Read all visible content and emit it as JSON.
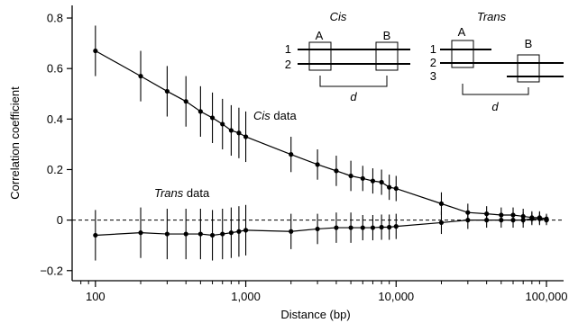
{
  "chart_data": {
    "type": "line",
    "xlabel": "Distance (bp)",
    "ylabel": "Correlation coefficient",
    "x_scale": "log",
    "xlim": [
      70,
      130000
    ],
    "ylim": [
      -0.24,
      0.85
    ],
    "x_ticks": [
      {
        "value": 100,
        "label": "100"
      },
      {
        "value": 1000,
        "label": "1,000"
      },
      {
        "value": 10000,
        "label": "10,000"
      },
      {
        "value": 100000,
        "label": "100,000"
      }
    ],
    "y_ticks": [
      {
        "value": 0.8,
        "label": "0.8"
      },
      {
        "value": 0.6,
        "label": "0.6"
      },
      {
        "value": 0.4,
        "label": "0.4"
      },
      {
        "value": 0.2,
        "label": "0.2"
      },
      {
        "value": 0,
        "label": "0"
      },
      {
        "value": -0.2,
        "label": "−0.2"
      }
    ],
    "reference_line": {
      "y": 0,
      "style": "dashed"
    },
    "grid": false,
    "series": [
      {
        "name_italic": "Cis",
        "name_rest": " data",
        "x": [
          100,
          200,
          300,
          400,
          500,
          600,
          700,
          800,
          900,
          1000,
          2000,
          3000,
          4000,
          5000,
          6000,
          7000,
          8000,
          9000,
          10000,
          20000,
          30000,
          40000,
          50000,
          60000,
          70000,
          80000,
          90000,
          100000
        ],
        "y": [
          0.67,
          0.57,
          0.51,
          0.47,
          0.43,
          0.405,
          0.38,
          0.355,
          0.345,
          0.33,
          0.26,
          0.22,
          0.195,
          0.175,
          0.165,
          0.155,
          0.15,
          0.13,
          0.125,
          0.065,
          0.03,
          0.025,
          0.02,
          0.02,
          0.015,
          0.01,
          0.01,
          0.005
        ],
        "err": [
          0.1,
          0.1,
          0.1,
          0.1,
          0.1,
          0.1,
          0.1,
          0.1,
          0.1,
          0.1,
          0.07,
          0.06,
          0.06,
          0.06,
          0.05,
          0.05,
          0.05,
          0.05,
          0.05,
          0.045,
          0.035,
          0.03,
          0.03,
          0.03,
          0.03,
          0.025,
          0.025,
          0.02
        ]
      },
      {
        "name_italic": "Trans",
        "name_rest": " data",
        "x": [
          100,
          200,
          300,
          400,
          500,
          600,
          700,
          800,
          900,
          1000,
          2000,
          3000,
          4000,
          5000,
          6000,
          7000,
          8000,
          9000,
          10000,
          20000,
          30000,
          40000,
          50000,
          60000,
          70000,
          80000,
          90000,
          100000
        ],
        "y": [
          -0.06,
          -0.05,
          -0.055,
          -0.055,
          -0.055,
          -0.06,
          -0.055,
          -0.05,
          -0.045,
          -0.04,
          -0.045,
          -0.035,
          -0.03,
          -0.03,
          -0.03,
          -0.03,
          -0.028,
          -0.028,
          -0.025,
          -0.01,
          0.0,
          0.0,
          0.0,
          0.0,
          0.0,
          0.005,
          0.005,
          0.0
        ],
        "err": [
          0.1,
          0.1,
          0.1,
          0.1,
          0.1,
          0.1,
          0.1,
          0.1,
          0.1,
          0.1,
          0.07,
          0.06,
          0.06,
          0.06,
          0.05,
          0.05,
          0.05,
          0.05,
          0.05,
          0.045,
          0.035,
          0.03,
          0.03,
          0.03,
          0.03,
          0.025,
          0.025,
          0.02
        ]
      }
    ]
  },
  "schematics": {
    "cis": {
      "title": "Cis",
      "line_labels": [
        "1",
        "2"
      ],
      "box_labels": [
        "A",
        "B"
      ],
      "distance_label": "d"
    },
    "trans": {
      "title": "Trans",
      "line_labels": [
        "1",
        "2",
        "3"
      ],
      "box_labels": [
        "A",
        "B"
      ],
      "distance_label": "d"
    }
  }
}
